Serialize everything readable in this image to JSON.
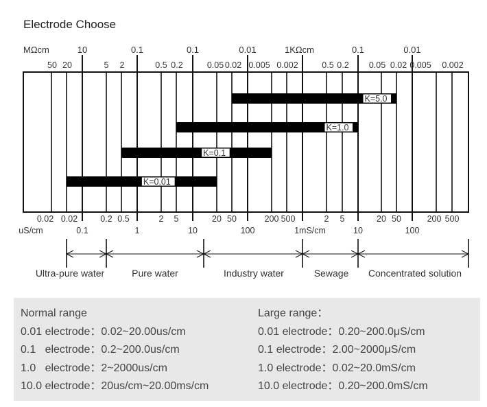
{
  "title": "Electrode Choose",
  "chart_data": {
    "type": "range-diagram",
    "top_axis": {
      "major_labels": [
        "MΩcm",
        "10",
        "0.1",
        "0.1",
        "0.01",
        "1KΩcm",
        "0.1",
        "0.01"
      ],
      "minor_labels": [
        "50",
        "20",
        "5",
        "2",
        "0.5",
        "0.2",
        "0.05",
        "0.02",
        "0.005",
        "0.002",
        "0.5",
        "0.2",
        "0.05",
        "0.02",
        "0.005",
        "0.002"
      ]
    },
    "bottom_axis": {
      "minor_labels": [
        "0.02",
        "0.02",
        "0.2",
        "0.5",
        "2",
        "5",
        "20",
        "50",
        "200",
        "500",
        "2",
        "5",
        "20",
        "50",
        "200",
        "500"
      ],
      "major_labels": [
        "uS/cm",
        "0.1",
        "1",
        "10",
        "100",
        "1mS/cm",
        "10",
        "100"
      ]
    },
    "bars": [
      {
        "label": "K=5.0",
        "from": "20 uS/cm",
        "to": "50 mS/cm"
      },
      {
        "label": "K=1.0",
        "from": "5 uS/cm",
        "to": "10 mS/cm"
      },
      {
        "label": "K=0.1",
        "from": "0.5 uS/cm",
        "to": "200 uS/cm"
      },
      {
        "label": "K=0.01",
        "from": "0.02 uS/cm",
        "to": "20 uS/cm"
      }
    ],
    "regions": [
      "Ultra-pure water",
      "Pure water",
      "Industry water",
      "Sewage",
      "Concentrated solution"
    ]
  },
  "panel": {
    "normal": [
      "Normal range",
      "0.01 electrode：0.02~20.00us/cm",
      "0.1   electrode：0.2~200.0us/cm",
      "1.0   electrode：2~2000us/cm",
      "10.0 electrode：20us/cm~20.00ms/cm"
    ],
    "large": [
      "Large range：",
      "0.01 electrode：0.20~200.0μS/cm",
      "0.1 electrode：2.00~2000μS/cm",
      "1.0 electrode：0.02~20.0mS/cm",
      "10.0 electrode：0.20~200.0mS/cm"
    ]
  }
}
